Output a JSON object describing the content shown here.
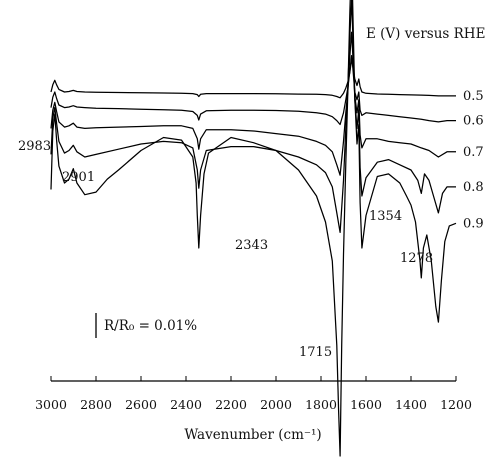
{
  "chart_data": {
    "type": "line",
    "xlabel": "Wavenumber (cm⁻¹)",
    "xlim": [
      3000,
      1200
    ],
    "x_reversed": true,
    "x_ticks": [
      3000,
      2800,
      2600,
      2400,
      2200,
      2000,
      1800,
      1600,
      1400,
      1200
    ],
    "legend_title": "E (V) versus RHE",
    "scale_bar": {
      "label": "R/R₀ = 0.01%",
      "value": 0.01
    },
    "peak_labels": [
      "2983",
      "2901",
      "2343",
      "1715",
      "1354",
      "1278"
    ],
    "series": [
      {
        "name": "0.5",
        "offset": 0.0,
        "points": [
          [
            3000,
            0.0
          ],
          [
            2992,
            0.055
          ],
          [
            2983,
            0.09
          ],
          [
            2975,
            0.055
          ],
          [
            2965,
            0.02
          ],
          [
            2940,
            0.0
          ],
          [
            2920,
            0.004
          ],
          [
            2901,
            0.012
          ],
          [
            2885,
            0.004
          ],
          [
            2850,
            0.0
          ],
          [
            2800,
            -0.002
          ],
          [
            2700,
            -0.004
          ],
          [
            2600,
            -0.006
          ],
          [
            2500,
            -0.008
          ],
          [
            2420,
            -0.01
          ],
          [
            2370,
            -0.012
          ],
          [
            2350,
            -0.02
          ],
          [
            2343,
            -0.035
          ],
          [
            2335,
            -0.018
          ],
          [
            2310,
            -0.012
          ],
          [
            2200,
            -0.012
          ],
          [
            2100,
            -0.012
          ],
          [
            2000,
            -0.014
          ],
          [
            1900,
            -0.016
          ],
          [
            1820,
            -0.018
          ],
          [
            1780,
            -0.02
          ],
          [
            1750,
            -0.025
          ],
          [
            1730,
            -0.035
          ],
          [
            1715,
            -0.045
          ],
          [
            1700,
            -0.01
          ],
          [
            1690,
            0.03
          ],
          [
            1680,
            0.08
          ],
          [
            1672,
            0.15
          ],
          [
            1664,
            0.25
          ],
          [
            1658,
            0.2
          ],
          [
            1650,
            0.1
          ],
          [
            1640,
            0.05
          ],
          [
            1632,
            0.1
          ],
          [
            1626,
            0.04
          ],
          [
            1618,
            0.0
          ],
          [
            1600,
            -0.01
          ],
          [
            1550,
            -0.015
          ],
          [
            1500,
            -0.018
          ],
          [
            1450,
            -0.02
          ],
          [
            1400,
            -0.022
          ],
          [
            1354,
            -0.024
          ],
          [
            1320,
            -0.026
          ],
          [
            1278,
            -0.03
          ],
          [
            1240,
            -0.03
          ],
          [
            1200,
            -0.03
          ]
        ]
      },
      {
        "name": "0.6",
        "offset": -0.12,
        "points": [
          [
            3000,
            0.0
          ],
          [
            2992,
            0.08
          ],
          [
            2983,
            0.12
          ],
          [
            2975,
            0.07
          ],
          [
            2965,
            0.02
          ],
          [
            2940,
            0.0
          ],
          [
            2920,
            0.005
          ],
          [
            2901,
            0.015
          ],
          [
            2885,
            0.005
          ],
          [
            2850,
            0.0
          ],
          [
            2800,
            -0.005
          ],
          [
            2700,
            -0.008
          ],
          [
            2600,
            -0.012
          ],
          [
            2500,
            -0.016
          ],
          [
            2420,
            -0.02
          ],
          [
            2370,
            -0.03
          ],
          [
            2350,
            -0.06
          ],
          [
            2343,
            -0.095
          ],
          [
            2335,
            -0.05
          ],
          [
            2310,
            -0.025
          ],
          [
            2200,
            -0.02
          ],
          [
            2100,
            -0.02
          ],
          [
            2000,
            -0.022
          ],
          [
            1900,
            -0.028
          ],
          [
            1820,
            -0.04
          ],
          [
            1780,
            -0.05
          ],
          [
            1750,
            -0.07
          ],
          [
            1730,
            -0.1
          ],
          [
            1715,
            -0.13
          ],
          [
            1700,
            -0.04
          ],
          [
            1690,
            0.06
          ],
          [
            1680,
            0.16
          ],
          [
            1672,
            0.28
          ],
          [
            1664,
            0.4
          ],
          [
            1658,
            0.3
          ],
          [
            1650,
            0.12
          ],
          [
            1640,
            0.06
          ],
          [
            1632,
            0.12
          ],
          [
            1626,
            -0.02
          ],
          [
            1618,
            -0.06
          ],
          [
            1600,
            -0.04
          ],
          [
            1550,
            -0.05
          ],
          [
            1500,
            -0.06
          ],
          [
            1450,
            -0.07
          ],
          [
            1400,
            -0.08
          ],
          [
            1354,
            -0.09
          ],
          [
            1320,
            -0.1
          ],
          [
            1278,
            -0.11
          ],
          [
            1240,
            -0.1
          ],
          [
            1200,
            -0.1
          ]
        ]
      },
      {
        "name": "0.7",
        "offset": -0.28,
        "points": [
          [
            3000,
            0.0
          ],
          [
            2992,
            0.14
          ],
          [
            2983,
            0.2
          ],
          [
            2975,
            0.13
          ],
          [
            2965,
            0.05
          ],
          [
            2940,
            0.01
          ],
          [
            2920,
            0.02
          ],
          [
            2901,
            0.04
          ],
          [
            2885,
            0.01
          ],
          [
            2850,
            0.0
          ],
          [
            2800,
            0.005
          ],
          [
            2700,
            0.01
          ],
          [
            2600,
            0.015
          ],
          [
            2500,
            0.02
          ],
          [
            2420,
            0.02
          ],
          [
            2370,
            0.0
          ],
          [
            2350,
            -0.08
          ],
          [
            2343,
            -0.16
          ],
          [
            2335,
            -0.08
          ],
          [
            2310,
            -0.01
          ],
          [
            2200,
            -0.01
          ],
          [
            2100,
            -0.02
          ],
          [
            2000,
            -0.04
          ],
          [
            1900,
            -0.06
          ],
          [
            1820,
            -0.1
          ],
          [
            1780,
            -0.13
          ],
          [
            1750,
            -0.18
          ],
          [
            1730,
            -0.28
          ],
          [
            1715,
            -0.36
          ],
          [
            1700,
            -0.1
          ],
          [
            1690,
            0.12
          ],
          [
            1680,
            0.3
          ],
          [
            1672,
            0.55
          ],
          [
            1664,
            0.74
          ],
          [
            1658,
            0.55
          ],
          [
            1650,
            0.25
          ],
          [
            1640,
            0.12
          ],
          [
            1632,
            0.22
          ],
          [
            1626,
            -0.05
          ],
          [
            1618,
            -0.15
          ],
          [
            1600,
            -0.08
          ],
          [
            1550,
            -0.08
          ],
          [
            1500,
            -0.1
          ],
          [
            1450,
            -0.11
          ],
          [
            1400,
            -0.12
          ],
          [
            1354,
            -0.15
          ],
          [
            1320,
            -0.17
          ],
          [
            1278,
            -0.22
          ],
          [
            1240,
            -0.18
          ],
          [
            1200,
            -0.18
          ]
        ]
      },
      {
        "name": "0.8",
        "offset": -0.48,
        "points": [
          [
            3000,
            0.0
          ],
          [
            2992,
            0.28
          ],
          [
            2983,
            0.36
          ],
          [
            2975,
            0.24
          ],
          [
            2965,
            0.1
          ],
          [
            2940,
            0.01
          ],
          [
            2920,
            0.03
          ],
          [
            2901,
            0.07
          ],
          [
            2885,
            0.02
          ],
          [
            2850,
            -0.02
          ],
          [
            2800,
            0.0
          ],
          [
            2700,
            0.04
          ],
          [
            2600,
            0.08
          ],
          [
            2500,
            0.1
          ],
          [
            2420,
            0.09
          ],
          [
            2370,
            0.05
          ],
          [
            2350,
            -0.12
          ],
          [
            2343,
            -0.26
          ],
          [
            2335,
            -0.12
          ],
          [
            2310,
            0.03
          ],
          [
            2200,
            0.06
          ],
          [
            2100,
            0.06
          ],
          [
            2000,
            0.03
          ],
          [
            1900,
            -0.02
          ],
          [
            1820,
            -0.08
          ],
          [
            1780,
            -0.14
          ],
          [
            1750,
            -0.25
          ],
          [
            1730,
            -0.45
          ],
          [
            1715,
            -0.6
          ],
          [
            1700,
            -0.2
          ],
          [
            1690,
            0.2
          ],
          [
            1680,
            0.55
          ],
          [
            1672,
            0.9
          ],
          [
            1664,
            1.2
          ],
          [
            1658,
            0.9
          ],
          [
            1650,
            0.42
          ],
          [
            1640,
            0.2
          ],
          [
            1632,
            0.35
          ],
          [
            1626,
            -0.1
          ],
          [
            1618,
            -0.32
          ],
          [
            1600,
            -0.18
          ],
          [
            1550,
            -0.06
          ],
          [
            1500,
            -0.04
          ],
          [
            1450,
            -0.08
          ],
          [
            1400,
            -0.12
          ],
          [
            1370,
            -0.2
          ],
          [
            1354,
            -0.3
          ],
          [
            1340,
            -0.15
          ],
          [
            1320,
            -0.2
          ],
          [
            1300,
            -0.32
          ],
          [
            1278,
            -0.45
          ],
          [
            1260,
            -0.3
          ],
          [
            1240,
            -0.25
          ],
          [
            1200,
            -0.25
          ]
        ]
      },
      {
        "name": "0.9",
        "offset": -0.75,
        "points": [
          [
            3000,
            0.0
          ],
          [
            2992,
            0.45
          ],
          [
            2983,
            0.58
          ],
          [
            2975,
            0.38
          ],
          [
            2965,
            0.18
          ],
          [
            2940,
            0.05
          ],
          [
            2920,
            0.08
          ],
          [
            2901,
            0.16
          ],
          [
            2885,
            0.05
          ],
          [
            2850,
            -0.04
          ],
          [
            2800,
            -0.02
          ],
          [
            2750,
            0.08
          ],
          [
            2700,
            0.15
          ],
          [
            2600,
            0.3
          ],
          [
            2500,
            0.4
          ],
          [
            2420,
            0.38
          ],
          [
            2370,
            0.25
          ],
          [
            2355,
            0.05
          ],
          [
            2350,
            -0.2
          ],
          [
            2343,
            -0.45
          ],
          [
            2335,
            -0.2
          ],
          [
            2320,
            0.12
          ],
          [
            2300,
            0.28
          ],
          [
            2200,
            0.4
          ],
          [
            2100,
            0.36
          ],
          [
            2000,
            0.3
          ],
          [
            1900,
            0.15
          ],
          [
            1820,
            -0.05
          ],
          [
            1780,
            -0.25
          ],
          [
            1750,
            -0.55
          ],
          [
            1730,
            -1.2
          ],
          [
            1722,
            -1.7
          ],
          [
            1715,
            -2.05
          ],
          [
            1708,
            -1.2
          ],
          [
            1700,
            -0.5
          ],
          [
            1690,
            0.2
          ],
          [
            1680,
            0.8
          ],
          [
            1672,
            1.35
          ],
          [
            1664,
            1.82
          ],
          [
            1658,
            1.35
          ],
          [
            1650,
            0.7
          ],
          [
            1640,
            0.35
          ],
          [
            1632,
            0.5
          ],
          [
            1626,
            -0.1
          ],
          [
            1618,
            -0.45
          ],
          [
            1600,
            -0.2
          ],
          [
            1550,
            0.1
          ],
          [
            1500,
            0.12
          ],
          [
            1450,
            0.05
          ],
          [
            1420,
            -0.05
          ],
          [
            1400,
            -0.12
          ],
          [
            1380,
            -0.25
          ],
          [
            1360,
            -0.55
          ],
          [
            1354,
            -0.68
          ],
          [
            1345,
            -0.45
          ],
          [
            1330,
            -0.35
          ],
          [
            1310,
            -0.55
          ],
          [
            1290,
            -0.9
          ],
          [
            1278,
            -1.02
          ],
          [
            1265,
            -0.7
          ],
          [
            1250,
            -0.4
          ],
          [
            1230,
            -0.28
          ],
          [
            1200,
            -0.26
          ]
        ]
      }
    ]
  }
}
